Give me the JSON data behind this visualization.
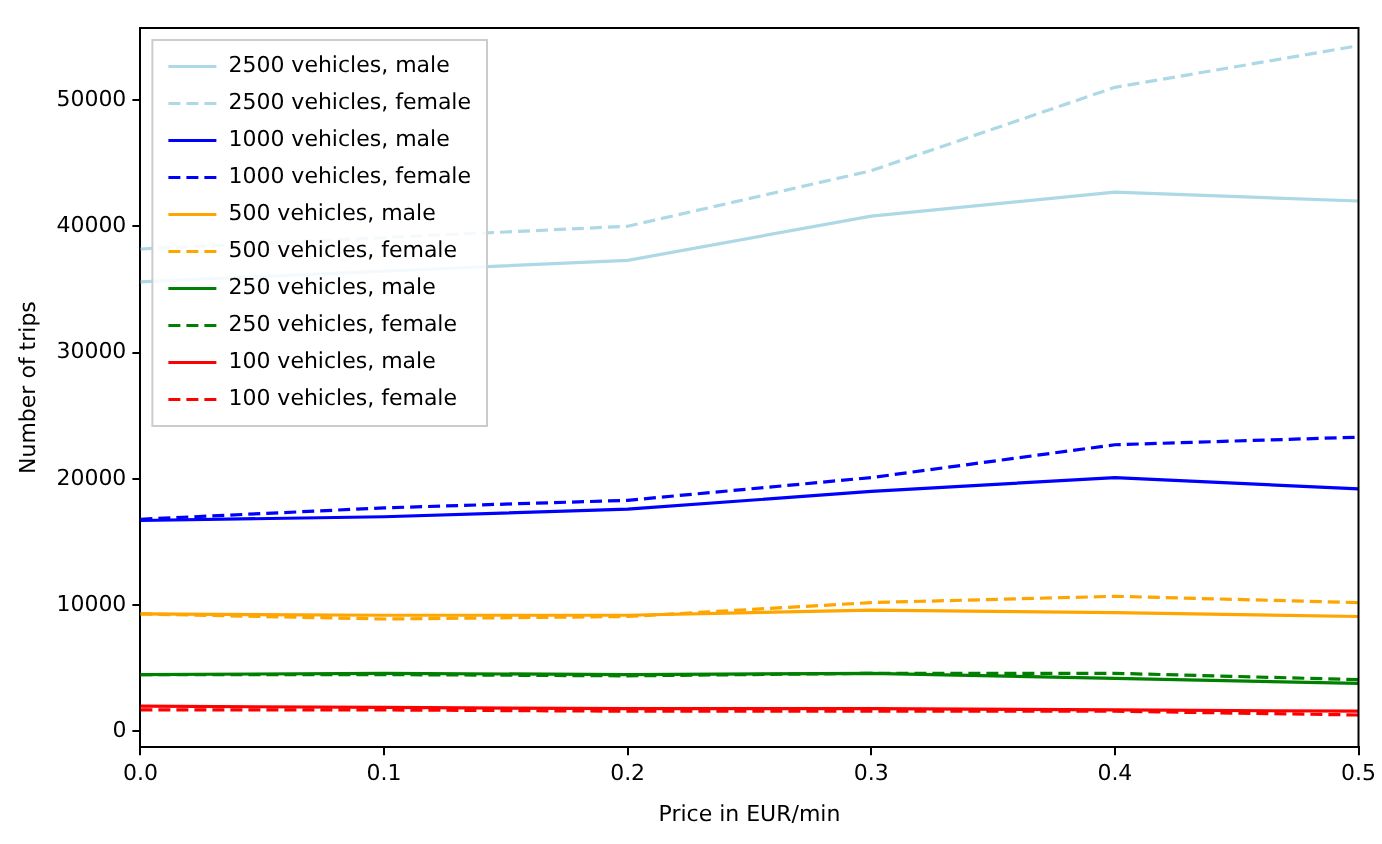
{
  "chart_data": {
    "type": "line",
    "xlabel": "Price in EUR/min",
    "ylabel": "Number of trips",
    "x": [
      0,
      0.1,
      0.2,
      0.3,
      0.4,
      0.5
    ],
    "series": [
      {
        "name": "2500 vehicles, male",
        "color": "#add8e6",
        "line_style": "solid",
        "values": [
          35600,
          null,
          37300,
          40800,
          42700,
          42000
        ]
      },
      {
        "name": "2500 vehicles, female",
        "color": "#add8e6",
        "line_style": "dashed",
        "values": [
          38200,
          null,
          40000,
          44400,
          51000,
          54300
        ]
      },
      {
        "name": "1000 vehicles, male",
        "color": "#0000ff",
        "line_style": "solid",
        "values": [
          16700,
          17000,
          17600,
          19000,
          20100,
          19200
        ]
      },
      {
        "name": "1000 vehicles, female",
        "color": "#0000ff",
        "line_style": "dashed",
        "values": [
          16800,
          17700,
          18300,
          20100,
          22700,
          23300
        ]
      },
      {
        "name": "500 vehicles, male",
        "color": "#ffa500",
        "line_style": "solid",
        "values": [
          9300,
          9200,
          9200,
          9600,
          9400,
          9100
        ]
      },
      {
        "name": "500 vehicles, female",
        "color": "#ffa500",
        "line_style": "dashed",
        "values": [
          9300,
          8900,
          9100,
          10200,
          10700,
          10200
        ]
      },
      {
        "name": "250 vehicles, male",
        "color": "#008000",
        "line_style": "solid",
        "values": [
          4500,
          4600,
          4500,
          4600,
          4200,
          3800
        ]
      },
      {
        "name": "250 vehicles, female",
        "color": "#008000",
        "line_style": "dashed",
        "values": [
          4500,
          4500,
          4400,
          4600,
          4600,
          4100
        ]
      },
      {
        "name": "100 vehicles, male",
        "color": "#ff0000",
        "line_style": "solid",
        "values": [
          2000,
          1900,
          1800,
          1800,
          1700,
          1600
        ]
      },
      {
        "name": "100 vehicles, female",
        "color": "#ff0000",
        "line_style": "dashed",
        "values": [
          1700,
          1700,
          1600,
          1600,
          1600,
          1300
        ]
      }
    ],
    "xlim": [
      0,
      0.5
    ],
    "xticks": [
      {
        "value": 0,
        "label": "0.0"
      },
      0.1,
      0.2,
      0.3,
      0.4,
      0.5
    ],
    "ylim": [
      -1250,
      55700
    ],
    "yticks": [
      0,
      10000,
      20000,
      30000,
      40000,
      50000
    ],
    "grid": false,
    "legend": "top left",
    "marker": "none"
  }
}
